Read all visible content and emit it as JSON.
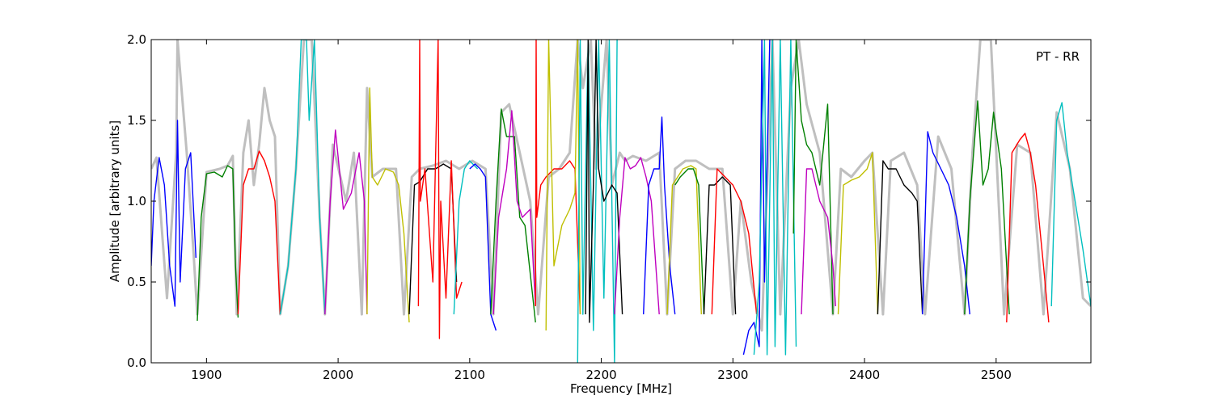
{
  "chart_data": {
    "type": "line",
    "title": "",
    "annotation": "PT - RR",
    "xlabel": "Frequency [MHz]",
    "ylabel": "Amplitude [arbitrary units]",
    "xlim": [
      1858,
      2572
    ],
    "ylim": [
      0,
      2.0
    ],
    "xticks": [
      1900,
      2000,
      2100,
      2200,
      2300,
      2400,
      2500
    ],
    "xtick_labels": [
      "1900",
      "2000",
      "2100",
      "2200",
      "2300",
      "2400",
      "2500"
    ],
    "yticks": [
      0,
      0.5,
      1.0,
      1.5,
      2.0
    ],
    "ytick_labels": [
      "0.0",
      "0.5",
      "1.0",
      "1.5",
      "2.0"
    ],
    "grid": false,
    "reference": {
      "color": "#bfbfbf",
      "x": [
        1858,
        1862,
        1870,
        1877,
        1878,
        1885,
        1890,
        1893,
        1900,
        1910,
        1916,
        1920,
        1923,
        1928,
        1932,
        1936,
        1940,
        1944,
        1948,
        1952,
        1956,
        1962,
        1968,
        1974,
        1980,
        1986,
        1990,
        1996,
        2006,
        2012,
        2018,
        2022,
        2026,
        2034,
        2044,
        2050,
        2056,
        2062,
        2072,
        2082,
        2092,
        2102,
        2112,
        2118,
        2124,
        2130,
        2138,
        2146,
        2152,
        2160,
        2168,
        2176,
        2182,
        2186,
        2192,
        2196,
        2204,
        2208,
        2214,
        2218,
        2224,
        2234,
        2244,
        2250,
        2256,
        2264,
        2272,
        2282,
        2292,
        2300,
        2306,
        2314,
        2322,
        2330,
        2336,
        2344,
        2350,
        2356,
        2366,
        2376,
        2382,
        2390,
        2400,
        2406,
        2414,
        2420,
        2430,
        2440,
        2446,
        2456,
        2466,
        2476,
        2482,
        2488,
        2496,
        2506,
        2516,
        2526,
        2536,
        2546,
        2556,
        2566,
        2572
      ],
      "y": [
        1.2,
        1.27,
        0.4,
        1.3,
        2.0,
        1.3,
        0.7,
        0.3,
        1.18,
        1.2,
        1.22,
        1.28,
        0.3,
        1.3,
        1.5,
        1.1,
        1.35,
        1.7,
        1.5,
        1.4,
        0.3,
        0.6,
        1.2,
        2.0,
        2.0,
        0.9,
        0.3,
        1.35,
        1.0,
        1.3,
        0.3,
        1.7,
        1.15,
        1.2,
        1.2,
        0.3,
        1.15,
        1.2,
        1.22,
        1.25,
        1.2,
        1.25,
        1.2,
        0.3,
        1.55,
        1.6,
        1.3,
        1.0,
        0.3,
        1.15,
        1.2,
        1.3,
        2.0,
        1.7,
        2.0,
        1.2,
        2.0,
        1.1,
        1.3,
        1.25,
        1.28,
        1.25,
        1.3,
        0.3,
        1.2,
        1.25,
        1.25,
        1.2,
        1.2,
        0.3,
        1.0,
        0.5,
        0.2,
        2.0,
        0.3,
        1.7,
        2.0,
        1.6,
        1.3,
        0.3,
        1.2,
        1.15,
        1.25,
        1.3,
        0.3,
        1.25,
        1.3,
        1.1,
        0.3,
        1.4,
        1.2,
        0.3,
        1.3,
        2.0,
        2.0,
        0.3,
        1.35,
        1.3,
        0.3,
        1.55,
        1.2,
        0.4,
        0.35
      ]
    },
    "series": [
      {
        "color": "#0000ff",
        "x": [
          1858,
          1860,
          1864,
          1868,
          1872,
          1876,
          1878,
          1880,
          1884,
          1888,
          1892
        ],
        "y": [
          0.6,
          1.0,
          1.27,
          1.1,
          0.6,
          0.35,
          1.5,
          0.5,
          1.2,
          1.3,
          0.65
        ]
      },
      {
        "color": "#008000",
        "x": [
          1893,
          1896,
          1900,
          1906,
          1912,
          1916,
          1920,
          1922,
          1924
        ],
        "y": [
          0.26,
          0.9,
          1.17,
          1.18,
          1.15,
          1.22,
          1.2,
          0.6,
          0.28
        ]
      },
      {
        "color": "#ff0000",
        "x": [
          1924,
          1928,
          1932,
          1936,
          1940,
          1944,
          1948,
          1952,
          1956
        ],
        "y": [
          0.3,
          1.1,
          1.2,
          1.2,
          1.31,
          1.25,
          1.15,
          1.0,
          0.3
        ]
      },
      {
        "color": "#00bfbf",
        "x": [
          1956,
          1962,
          1968,
          1972,
          1976,
          1978,
          1982,
          1986,
          1990
        ],
        "y": [
          0.3,
          0.6,
          1.2,
          2.0,
          2.0,
          1.5,
          2.0,
          0.9,
          0.3
        ]
      },
      {
        "color": "#bf00bf",
        "x": [
          1990,
          1994,
          1998,
          2004,
          2010,
          2016,
          2020,
          2022
        ],
        "y": [
          0.3,
          1.0,
          1.44,
          0.95,
          1.05,
          1.3,
          1.0,
          0.3
        ]
      },
      {
        "color": "#bfbf00",
        "x": [
          2022,
          2024,
          2026,
          2030,
          2036,
          2042,
          2046,
          2050,
          2054
        ],
        "y": [
          0.3,
          1.7,
          1.15,
          1.1,
          1.2,
          1.18,
          1.1,
          0.8,
          0.25
        ]
      },
      {
        "color": "#000000",
        "x": [
          2054,
          2058,
          2062,
          2068,
          2074,
          2080,
          2086,
          2090
        ],
        "y": [
          0.3,
          1.1,
          1.12,
          1.2,
          1.2,
          1.23,
          1.2,
          0.5
        ]
      },
      {
        "color": "#ff0000",
        "x": [
          2061,
          2062,
          2062.5,
          2066,
          2072,
          2076,
          2077,
          2078,
          2082,
          2086,
          2090,
          2094
        ],
        "y": [
          0.35,
          2.0,
          1.0,
          1.2,
          0.5,
          2.0,
          0.15,
          1.0,
          0.4,
          1.25,
          0.4,
          0.5
        ]
      },
      {
        "color": "#00bfbf",
        "x": [
          2088,
          2092,
          2096,
          2100,
          2106
        ],
        "y": [
          0.3,
          1.0,
          1.2,
          1.25,
          1.2
        ]
      },
      {
        "color": "#0000ff",
        "x": [
          2100,
          2104,
          2108,
          2112,
          2116,
          2120
        ],
        "y": [
          1.2,
          1.23,
          1.2,
          1.15,
          0.3,
          0.2
        ]
      },
      {
        "color": "#008000",
        "x": [
          2116,
          2120,
          2124,
          2128,
          2134,
          2138,
          2142,
          2148,
          2150
        ],
        "y": [
          0.3,
          1.0,
          1.57,
          1.4,
          1.4,
          0.9,
          0.85,
          0.4,
          0.25
        ]
      },
      {
        "color": "#bf00bf",
        "x": [
          2118,
          2122,
          2128,
          2132,
          2136,
          2140,
          2146,
          2150
        ],
        "y": [
          0.3,
          0.9,
          1.2,
          1.56,
          1.0,
          0.9,
          0.95,
          0.35
        ]
      },
      {
        "color": "#ff0000",
        "x": [
          2150,
          2150.5,
          2151,
          2154,
          2158,
          2164,
          2170,
          2176,
          2180,
          2184
        ],
        "y": [
          0.35,
          2.0,
          0.9,
          1.1,
          1.15,
          1.2,
          1.2,
          1.25,
          1.2,
          0.3
        ]
      },
      {
        "color": "#bfbf00",
        "x": [
          2158,
          2160,
          2164,
          2170,
          2176,
          2180,
          2182,
          2184
        ],
        "y": [
          0.2,
          2.0,
          0.6,
          0.85,
          0.95,
          1.05,
          2.0,
          0.3
        ]
      },
      {
        "color": "#00bfbf",
        "x": [
          2182,
          2184,
          2186,
          2190,
          2194,
          2198,
          2202,
          2206,
          2210,
          2212
        ],
        "y": [
          0.0,
          2.0,
          0.3,
          2.0,
          0.2,
          2.0,
          0.4,
          2.0,
          0.0,
          2.0
        ]
      },
      {
        "color": "#000000",
        "x": [
          2188,
          2190,
          2191,
          2194,
          2196,
          2198,
          2202,
          2208,
          2212,
          2216
        ],
        "y": [
          0.3,
          2.0,
          0.25,
          1.1,
          2.0,
          1.2,
          1.0,
          1.1,
          1.05,
          0.3
        ]
      },
      {
        "color": "#bf00bf",
        "x": [
          2210,
          2214,
          2218,
          2222,
          2226,
          2230,
          2234,
          2238,
          2244
        ],
        "y": [
          0.3,
          0.9,
          1.27,
          1.2,
          1.22,
          1.27,
          1.15,
          1.0,
          0.3
        ]
      },
      {
        "color": "#0000ff",
        "x": [
          2232,
          2236,
          2240,
          2244,
          2246,
          2248,
          2252,
          2256
        ],
        "y": [
          0.3,
          1.1,
          1.2,
          1.2,
          1.52,
          1.1,
          0.6,
          0.3
        ]
      },
      {
        "color": "#bfbf00",
        "x": [
          2250,
          2254,
          2258,
          2262,
          2268,
          2272,
          2276
        ],
        "y": [
          0.3,
          1.1,
          1.15,
          1.2,
          1.22,
          1.2,
          0.3
        ]
      },
      {
        "color": "#008000",
        "x": [
          2256,
          2260,
          2266,
          2270,
          2274,
          2278
        ],
        "y": [
          1.1,
          1.15,
          1.2,
          1.2,
          1.1,
          0.3
        ]
      },
      {
        "color": "#000000",
        "x": [
          2278,
          2282,
          2286,
          2292,
          2298,
          2302
        ],
        "y": [
          0.3,
          1.1,
          1.1,
          1.15,
          1.1,
          0.3
        ]
      },
      {
        "color": "#ff0000",
        "x": [
          2284,
          2288,
          2294,
          2300,
          2306,
          2312,
          2318
        ],
        "y": [
          0.3,
          1.2,
          1.15,
          1.1,
          1.0,
          0.8,
          0.3
        ]
      },
      {
        "color": "#0000ff",
        "x": [
          2308,
          2312,
          2316,
          2320,
          2322,
          2324,
          2328
        ],
        "y": [
          0.05,
          0.2,
          0.25,
          0.1,
          2.0,
          0.5,
          2.0
        ]
      },
      {
        "color": "#00bfbf",
        "x": [
          2316,
          2320,
          2324,
          2326,
          2330,
          2332,
          2336,
          2340,
          2344,
          2348
        ],
        "y": [
          0.05,
          0.5,
          2.0,
          0.05,
          2.0,
          0.1,
          2.0,
          0.05,
          2.0,
          0.1
        ]
      },
      {
        "color": "#008000",
        "x": [
          2346,
          2348,
          2352,
          2356,
          2360,
          2366,
          2372,
          2376
        ],
        "y": [
          0.8,
          2.0,
          1.5,
          1.35,
          1.3,
          1.1,
          1.6,
          0.3
        ]
      },
      {
        "color": "#bf00bf",
        "x": [
          2352,
          2356,
          2360,
          2366,
          2372,
          2376,
          2378
        ],
        "y": [
          0.3,
          1.2,
          1.2,
          1.0,
          0.9,
          0.6,
          0.35
        ]
      },
      {
        "color": "#bfbf00",
        "x": [
          2380,
          2384,
          2390,
          2396,
          2402,
          2406,
          2410
        ],
        "y": [
          0.3,
          1.1,
          1.13,
          1.15,
          1.2,
          1.3,
          0.3
        ]
      },
      {
        "color": "#000000",
        "x": [
          2410,
          2414,
          2418,
          2424,
          2430,
          2436,
          2440,
          2444
        ],
        "y": [
          0.3,
          1.25,
          1.2,
          1.2,
          1.1,
          1.05,
          1.0,
          0.3
        ]
      },
      {
        "color": "#0000ff",
        "x": [
          2444,
          2448,
          2452,
          2458,
          2464,
          2470,
          2476,
          2480
        ],
        "y": [
          0.3,
          1.43,
          1.3,
          1.2,
          1.1,
          0.9,
          0.6,
          0.3
        ]
      },
      {
        "color": "#008000",
        "x": [
          2476,
          2480,
          2486,
          2490,
          2494,
          2498,
          2504,
          2510
        ],
        "y": [
          0.3,
          1.0,
          1.62,
          1.1,
          1.2,
          1.55,
          1.2,
          0.3
        ]
      },
      {
        "color": "#ff0000",
        "x": [
          2508,
          2512,
          2518,
          2522,
          2526,
          2530,
          2536,
          2540
        ],
        "y": [
          0.25,
          1.3,
          1.38,
          1.42,
          1.3,
          1.1,
          0.6,
          0.25
        ]
      },
      {
        "color": "#00bfbf",
        "x": [
          2542,
          2546,
          2550,
          2554,
          2560,
          2566,
          2572
        ],
        "y": [
          0.35,
          1.5,
          1.61,
          1.3,
          1.0,
          0.7,
          0.35
        ]
      }
    ]
  }
}
